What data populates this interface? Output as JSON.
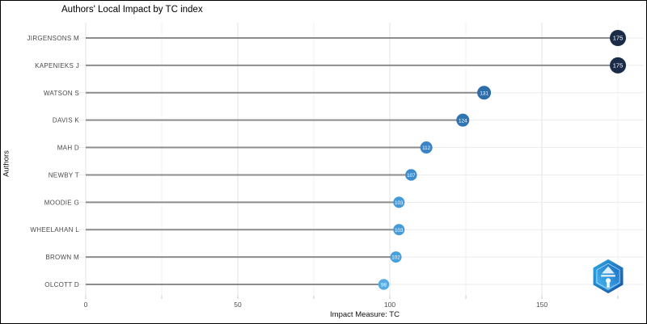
{
  "chart_data": {
    "type": "scatter",
    "variant": "lollipop",
    "title": "Authors' Local Impact by TC index",
    "xlabel": "Impact Measure: TC",
    "ylabel": "Authors",
    "categories": [
      "JIRGENSONS M",
      "KAPENIEKS J",
      "WATSON S",
      "DAVIS K",
      "MAH D",
      "NEWBY T",
      "MOODIE G",
      "WHEELAHAN L",
      "BROWN M",
      "OLCOTT D"
    ],
    "values": [
      175,
      175,
      131,
      124,
      112,
      107,
      103,
      103,
      102,
      98
    ],
    "point_colors": [
      "#1a2c47",
      "#1a2c47",
      "#2d6da8",
      "#2f74b3",
      "#3a83c6",
      "#3f8ccd",
      "#459ad9",
      "#459ad9",
      "#47a0de",
      "#55abe6"
    ],
    "point_radii": [
      10,
      10,
      8.5,
      8,
      7.5,
      7.2,
      7,
      7,
      7,
      6.8
    ],
    "value_label_color": "#ffffff",
    "stem_color": "#8c8c8c",
    "xlim": [
      0,
      183.5
    ],
    "xticks_minor_step": 25,
    "xtick_labels": [
      0,
      50,
      100,
      150
    ],
    "grid": true,
    "legend": "none",
    "major_grid_color": "#e3e3e3",
    "minor_grid_color": "#f1f1f1",
    "row_grid_color": "#ebebeb",
    "tick_color": "#c9c9c9",
    "tick_label_color": "#4d4d4d",
    "category_label_color": "#4a4a4a"
  },
  "branding": {
    "logo_name": "bibliometrix-shield",
    "logo_outer_color": "#1b4fa0",
    "logo_mid_color": "#29abe2",
    "logo_glyph_color": "#ffffff"
  }
}
